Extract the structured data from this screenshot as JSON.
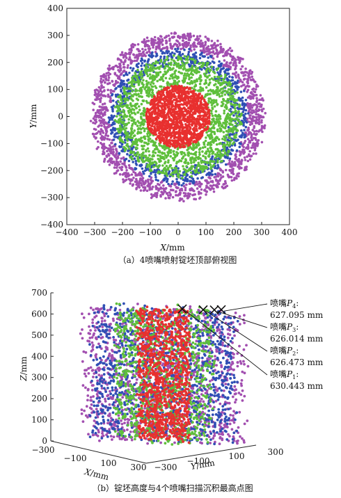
{
  "chart_data": [
    {
      "type": "scatter",
      "caption": "（a）4喷嘴喷射锭坯顶部俯视图",
      "xlabel_var": "X",
      "xlabel_unit": "/mm",
      "ylabel_var": "Y",
      "ylabel_unit": "/mm",
      "xlim": [
        -400,
        400
      ],
      "ylim": [
        -400,
        400
      ],
      "xticks": [
        "−400",
        "−300",
        "−200",
        "−100",
        "0",
        "100",
        "200",
        "300",
        "400"
      ],
      "yticks": [
        "−400",
        "−300",
        "−200",
        "−100",
        "0",
        "100",
        "200",
        "300",
        "400"
      ],
      "grid": false,
      "series": [
        {
          "name": "",
          "color": "#a24fb0",
          "shape": "ring",
          "r_inner": 250,
          "r_outer": 310
        },
        {
          "name": "",
          "color": "#2f4fb5",
          "shape": "ring",
          "r_inner": 190,
          "r_outer": 250
        },
        {
          "name": "",
          "color": "#5fbf3c",
          "shape": "ring",
          "r_inner": 110,
          "r_outer": 225
        },
        {
          "name": "",
          "color": "#e8302f",
          "shape": "disk",
          "r_inner": 0,
          "r_outer": 115
        }
      ]
    },
    {
      "type": "scatter",
      "caption": "（b）锭坯高度与4个喷嘴扫描沉积最高点图",
      "xlabel_var": "X",
      "xlabel_unit": "/mm",
      "ylabel_var": "Y",
      "ylabel_unit": "/mm",
      "zlabel_var": "Z",
      "zlabel_unit": "/mm",
      "xticks": [
        "−300",
        "−100",
        "100",
        "300"
      ],
      "yticks": [
        "−300",
        "−100",
        "100",
        "300"
      ],
      "zticks": [
        "0",
        "100",
        "200",
        "300",
        "400",
        "500",
        "600",
        "700"
      ],
      "zlim": [
        0,
        700
      ],
      "series_colors": [
        "#a24fb0",
        "#2f4fb5",
        "#5fbf3c",
        "#e8302f"
      ],
      "peaks": [
        {
          "label_main": "喷嘴",
          "label_var": "P",
          "label_sub": "4",
          "value_text": "627.095 mm",
          "z": 627.095
        },
        {
          "label_main": "喷嘴",
          "label_var": "P",
          "label_sub": "3",
          "value_text": "626.014 mm",
          "z": 626.014
        },
        {
          "label_main": "喷嘴",
          "label_var": "P",
          "label_sub": "2",
          "value_text": "626.473 mm",
          "z": 626.473
        },
        {
          "label_main": "喷嘴",
          "label_var": "P",
          "label_sub": "1",
          "value_text": "630.443 mm",
          "z": 630.443
        }
      ]
    }
  ]
}
